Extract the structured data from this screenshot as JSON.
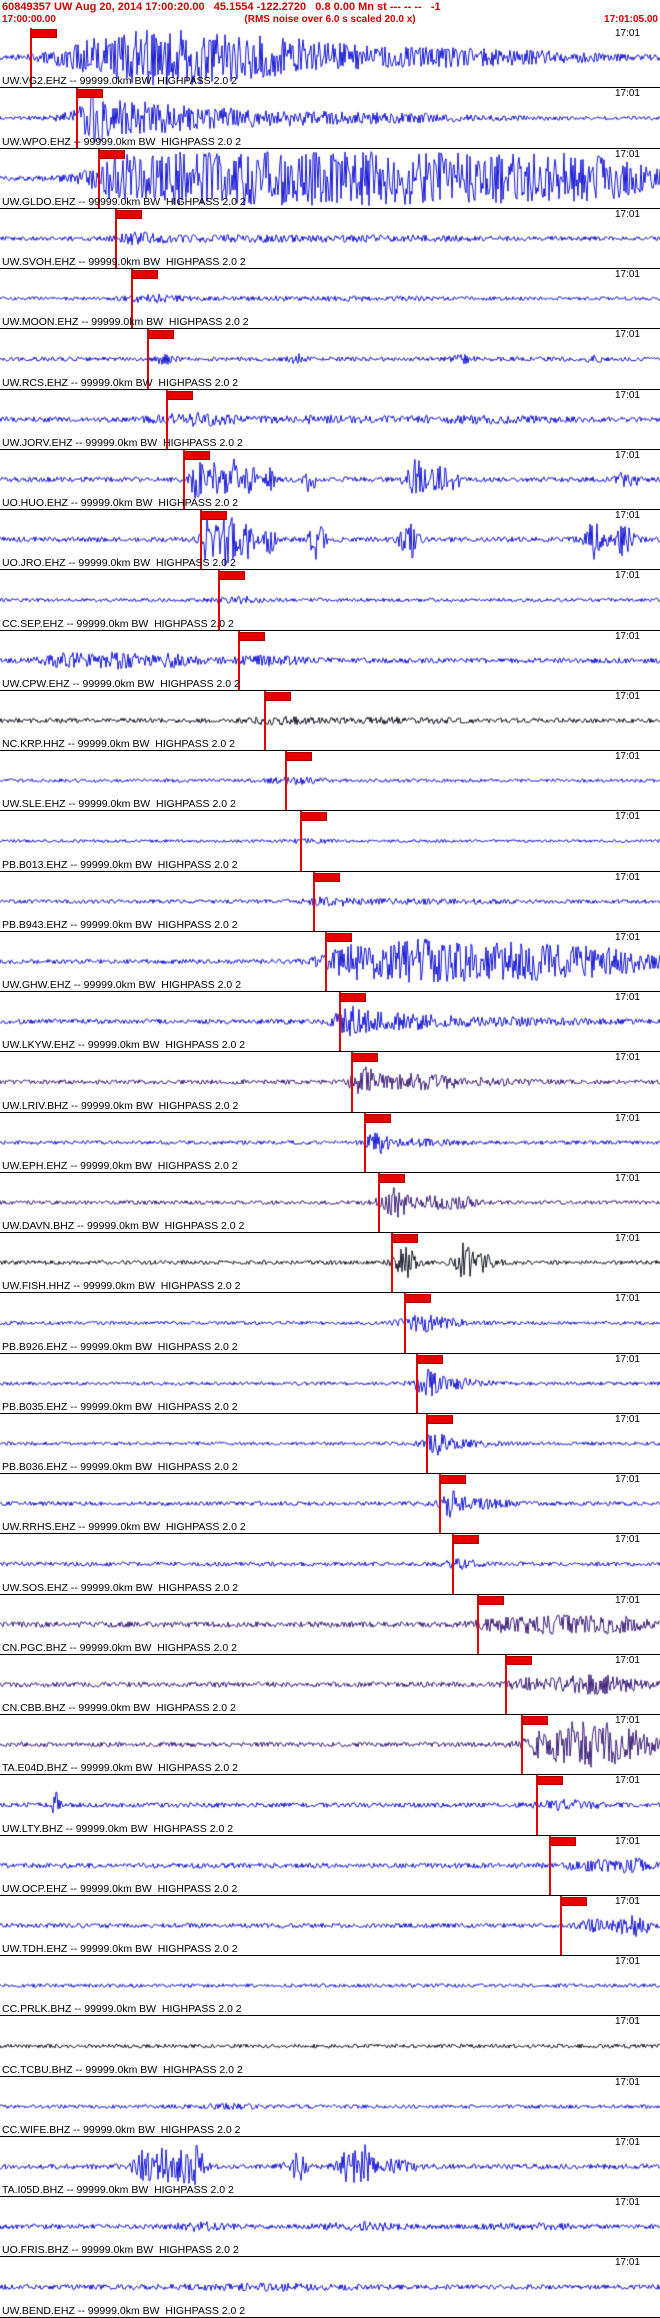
{
  "header": {
    "event_line": "60849357 UW Aug 20, 2014 17:00:20.00   45.1554 -122.2720   0.8 0.00 Mn st --- -- --   -1",
    "start_time": "17:00:00.00",
    "scale_note": "(RMS noise over 6.0 s scaled 20.0 x)",
    "end_time": "17:01:05.00"
  },
  "colors": {
    "header_red": "#cc0000",
    "pick_red": "#e60000",
    "blue": "#0000d2",
    "black": "#000014",
    "violet": "#2b0a6b"
  },
  "traces": [
    {
      "label": "UW.VG2.EHZ -- 99999.0km BW  HIGHPASS 2.0 2",
      "time_label": "17:01",
      "color": "blue",
      "pick": 0.045,
      "noise": 2.5,
      "bursts": [
        [
          0.18,
          0.06,
          18
        ],
        [
          0.3,
          0.08,
          22
        ],
        [
          0.45,
          0.07,
          12
        ],
        [
          0.62,
          0.1,
          7
        ],
        [
          0.8,
          0.1,
          4
        ]
      ]
    },
    {
      "label": "UW.WPO.EHZ -- 99999.0km BW  HIGHPASS 2.0 2",
      "time_label": "17:01",
      "color": "blue",
      "pick": 0.115,
      "noise": 2.0,
      "bursts": [
        [
          0.145,
          0.025,
          20
        ],
        [
          0.22,
          0.05,
          12
        ],
        [
          0.35,
          0.08,
          7
        ],
        [
          0.55,
          0.12,
          4
        ]
      ]
    },
    {
      "label": "UW.GLDO.EHZ -- 99999.0km BW  HIGHPASS 2.0 2",
      "time_label": "17:01",
      "color": "blue",
      "pick": 0.148,
      "noise": 2.5,
      "bursts": [
        [
          0.18,
          0.03,
          16
        ],
        [
          0.3,
          0.08,
          24
        ],
        [
          0.5,
          0.1,
          26
        ],
        [
          0.7,
          0.08,
          20
        ],
        [
          0.88,
          0.08,
          22
        ]
      ]
    },
    {
      "label": "UW.SVOH.EHZ -- 99999.0km BW  HIGHPASS 2.0 2",
      "time_label": "17:01",
      "color": "blue",
      "pick": 0.175,
      "noise": 2.2,
      "bursts": [
        [
          0.21,
          0.03,
          4
        ],
        [
          0.35,
          0.1,
          2
        ],
        [
          0.6,
          0.1,
          1.5
        ]
      ]
    },
    {
      "label": "UW.MOON.EHZ -- 99999.0km BW  HIGHPASS 2.0 2",
      "time_label": "17:01",
      "color": "blue",
      "pick": 0.198,
      "noise": 1.8,
      "bursts": [
        [
          0.23,
          0.03,
          3
        ],
        [
          0.5,
          0.15,
          1
        ]
      ]
    },
    {
      "label": "UW.RCS.EHZ -- 99999.0km BW  HIGHPASS 2.0 2",
      "time_label": "17:01",
      "color": "blue",
      "pick": 0.222,
      "noise": 2.2,
      "bursts": [
        [
          0.25,
          0.01,
          4
        ],
        [
          0.45,
          0.008,
          4
        ],
        [
          0.7,
          0.01,
          3
        ],
        [
          0.9,
          0.008,
          3
        ]
      ]
    },
    {
      "label": "UW.JORV.EHZ -- 99999.0km BW  HIGHPASS 2.0 2",
      "time_label": "17:01",
      "color": "blue",
      "pick": 0.252,
      "noise": 2.6,
      "bursts": [
        [
          0.29,
          0.04,
          5
        ],
        [
          0.5,
          0.1,
          2
        ],
        [
          0.75,
          0.08,
          2
        ]
      ]
    },
    {
      "label": "UO.HUO.EHZ -- 99999.0km BW  HIGHPASS 2.0 2",
      "time_label": "17:01",
      "color": "blue",
      "pick": 0.278,
      "noise": 2.6,
      "bursts": [
        [
          0.3,
          0.008,
          20
        ],
        [
          0.325,
          0.006,
          24
        ],
        [
          0.35,
          0.008,
          22
        ],
        [
          0.38,
          0.006,
          18
        ],
        [
          0.41,
          0.005,
          10
        ],
        [
          0.47,
          0.006,
          12
        ],
        [
          0.63,
          0.01,
          22
        ],
        [
          0.665,
          0.008,
          20
        ],
        [
          0.69,
          0.005,
          12
        ],
        [
          0.95,
          0.012,
          8
        ]
      ]
    },
    {
      "label": "UO.JRO.EHZ -- 99999.0km BW  HIGHPASS 2.0 2",
      "time_label": "17:01",
      "color": "blue",
      "pick": 0.303,
      "noise": 2.6,
      "bursts": [
        [
          0.315,
          0.008,
          22
        ],
        [
          0.345,
          0.01,
          26
        ],
        [
          0.375,
          0.008,
          22
        ],
        [
          0.41,
          0.006,
          16
        ],
        [
          0.48,
          0.008,
          18
        ],
        [
          0.62,
          0.01,
          20
        ],
        [
          0.9,
          0.012,
          18
        ],
        [
          0.945,
          0.01,
          16
        ]
      ]
    },
    {
      "label": "CC.SEP.EHZ -- 99999.0km BW  HIGHPASS 2.0 2",
      "time_label": "17:01",
      "color": "blue",
      "pick": 0.33,
      "noise": 1.8,
      "bursts": [
        [
          0.36,
          0.03,
          2.5
        ]
      ]
    },
    {
      "label": "UW.CPW.EHZ -- 99999.0km BW  HIGHPASS 2.0 2",
      "time_label": "17:01",
      "color": "blue",
      "pick": 0.36,
      "noise": 2.6,
      "bursts": [
        [
          0.1,
          0.025,
          6
        ],
        [
          0.18,
          0.03,
          7
        ],
        [
          0.26,
          0.025,
          5
        ],
        [
          0.4,
          0.05,
          3
        ]
      ]
    },
    {
      "label": "NC.KRP.HHZ -- 99999.0km BW  HIGHPASS 2.0 2",
      "time_label": "17:01",
      "color": "black",
      "pick": 0.4,
      "noise": 2.4,
      "bursts": [
        [
          0.42,
          0.03,
          3
        ],
        [
          0.6,
          0.08,
          1.5
        ]
      ]
    },
    {
      "label": "UW.SLE.EHZ -- 99999.0km BW  HIGHPASS 2.0 2",
      "time_label": "17:01",
      "color": "blue",
      "pick": 0.432,
      "noise": 1.8,
      "bursts": [
        [
          0.45,
          0.03,
          2.5
        ]
      ]
    },
    {
      "label": "PB.B013.EHZ -- 99999.0km BW  HIGHPASS 2.0 2",
      "time_label": "17:01",
      "color": "blue",
      "pick": 0.455,
      "noise": 1.5,
      "bursts": [
        [
          0.47,
          0.02,
          2
        ]
      ]
    },
    {
      "label": "PB.B943.EHZ -- 99999.0km BW  HIGHPASS 2.0 2",
      "time_label": "17:01",
      "color": "blue",
      "pick": 0.474,
      "noise": 2.0,
      "bursts": [
        [
          0.5,
          0.02,
          3
        ],
        [
          0.6,
          0.1,
          1.5
        ]
      ]
    },
    {
      "label": "UW.GHW.EHZ -- 99999.0km BW  HIGHPASS 2.0 2",
      "time_label": "17:01",
      "color": "blue",
      "pick": 0.493,
      "noise": 2.4,
      "bursts": [
        [
          0.53,
          0.03,
          10
        ],
        [
          0.62,
          0.06,
          16
        ],
        [
          0.75,
          0.08,
          14
        ],
        [
          0.9,
          0.08,
          12
        ]
      ]
    },
    {
      "label": "UW.LKYW.EHZ -- 99999.0km BW  HIGHPASS 2.0 2",
      "time_label": "17:01",
      "color": "blue",
      "pick": 0.513,
      "noise": 2.4,
      "bursts": [
        [
          0.535,
          0.02,
          12
        ],
        [
          0.6,
          0.05,
          6
        ],
        [
          0.75,
          0.1,
          3
        ]
      ]
    },
    {
      "label": "UW.LRIV.BHZ -- 99999.0km BW  HIGHPASS 2.0 2",
      "time_label": "17:01",
      "color": "violet",
      "pick": 0.532,
      "noise": 2.2,
      "bursts": [
        [
          0.555,
          0.015,
          14
        ],
        [
          0.62,
          0.04,
          6
        ],
        [
          0.72,
          0.06,
          3
        ]
      ]
    },
    {
      "label": "UW.EPH.EHZ -- 99999.0km BW  HIGHPASS 2.0 2",
      "time_label": "17:01",
      "color": "blue",
      "pick": 0.552,
      "noise": 2.0,
      "bursts": [
        [
          0.572,
          0.012,
          9
        ],
        [
          0.63,
          0.04,
          3
        ]
      ]
    },
    {
      "label": "UW.DAVN.BHZ -- 99999.0km BW  HIGHPASS 2.0 2",
      "time_label": "17:01",
      "color": "violet",
      "pick": 0.572,
      "noise": 2.0,
      "bursts": [
        [
          0.595,
          0.015,
          16
        ],
        [
          0.65,
          0.03,
          5
        ],
        [
          0.7,
          0.02,
          4
        ]
      ]
    },
    {
      "label": "UW.FISH.HHZ -- 99999.0km BW  HIGHPASS 2.0 2",
      "time_label": "17:01",
      "color": "black",
      "pick": 0.592,
      "noise": 2.2,
      "bursts": [
        [
          0.615,
          0.012,
          14
        ],
        [
          0.7,
          0.01,
          17
        ],
        [
          0.73,
          0.015,
          8
        ]
      ]
    },
    {
      "label": "PB.B926.EHZ -- 99999.0km BW  HIGHPASS 2.0 2",
      "time_label": "17:01",
      "color": "blue",
      "pick": 0.612,
      "noise": 1.8,
      "bursts": [
        [
          0.635,
          0.02,
          7
        ],
        [
          0.68,
          0.03,
          3
        ]
      ]
    },
    {
      "label": "PB.B035.EHZ -- 99999.0km BW  HIGHPASS 2.0 2",
      "time_label": "17:01",
      "color": "blue",
      "pick": 0.63,
      "noise": 1.8,
      "bursts": [
        [
          0.648,
          0.015,
          12
        ],
        [
          0.7,
          0.03,
          4
        ]
      ]
    },
    {
      "label": "PB.B036.EHZ -- 99999.0km BW  HIGHPASS 2.0 2",
      "time_label": "17:01",
      "color": "blue",
      "pick": 0.645,
      "noise": 1.8,
      "bursts": [
        [
          0.662,
          0.015,
          10
        ],
        [
          0.71,
          0.03,
          3
        ]
      ]
    },
    {
      "label": "UW.RRHS.EHZ -- 99999.0km BW  HIGHPASS 2.0 2",
      "time_label": "17:01",
      "color": "blue",
      "pick": 0.665,
      "noise": 2.2,
      "bursts": [
        [
          0.685,
          0.012,
          12
        ],
        [
          0.73,
          0.03,
          4
        ]
      ]
    },
    {
      "label": "UW.SOS.EHZ -- 99999.0km BW  HIGHPASS 2.0 2",
      "time_label": "17:01",
      "color": "blue",
      "pick": 0.685,
      "noise": 2.2,
      "bursts": [
        [
          0.7,
          0.02,
          4
        ]
      ]
    },
    {
      "label": "CN.PGC.BHZ -- 99999.0km BW  HIGHPASS 2.0 2",
      "time_label": "17:01",
      "color": "violet",
      "pick": 0.722,
      "noise": 2.8,
      "bursts": [
        [
          0.76,
          0.03,
          4
        ],
        [
          0.84,
          0.05,
          7
        ],
        [
          0.93,
          0.04,
          6
        ]
      ]
    },
    {
      "label": "CN.CBB.BHZ -- 99999.0km BW  HIGHPASS 2.0 2",
      "time_label": "17:01",
      "color": "violet",
      "pick": 0.765,
      "noise": 2.6,
      "bursts": [
        [
          0.8,
          0.02,
          4
        ],
        [
          0.9,
          0.05,
          8
        ]
      ]
    },
    {
      "label": "TA.E04D.BHZ -- 99999.0km BW  HIGHPASS 2.0 2",
      "time_label": "17:01",
      "color": "violet",
      "pick": 0.79,
      "noise": 2.4,
      "bursts": [
        [
          0.82,
          0.02,
          8
        ],
        [
          0.88,
          0.035,
          22
        ],
        [
          0.95,
          0.03,
          16
        ]
      ]
    },
    {
      "label": "UW.LTY.BHZ -- 99999.0km BW  HIGHPASS 2.0 2",
      "time_label": "17:01",
      "color": "blue",
      "pick": 0.812,
      "noise": 2.4,
      "bursts": [
        [
          0.085,
          0.004,
          12
        ],
        [
          0.86,
          0.03,
          4
        ]
      ]
    },
    {
      "label": "UW.OCP.EHZ -- 99999.0km BW  HIGHPASS 2.0 2",
      "time_label": "17:01",
      "color": "blue",
      "pick": 0.832,
      "noise": 2.6,
      "bursts": [
        [
          0.9,
          0.03,
          4
        ],
        [
          0.96,
          0.02,
          5
        ]
      ]
    },
    {
      "label": "UW.TDH.EHZ -- 99999.0km BW  HIGHPASS 2.0 2",
      "time_label": "17:01",
      "color": "blue",
      "pick": 0.848,
      "noise": 2.4,
      "bursts": [
        [
          0.9,
          0.015,
          5
        ],
        [
          0.96,
          0.02,
          10
        ]
      ]
    },
    {
      "label": "CC.PRLK.BHZ -- 99999.0km BW  HIGHPASS 2.0 2",
      "time_label": "17:01",
      "color": "blue",
      "pick": null,
      "noise": 1.9,
      "bursts": []
    },
    {
      "label": "CC.TCBU.BHZ -- 99999.0km BW  HIGHPASS 2.0 2",
      "time_label": "17:01",
      "color": "black",
      "pick": null,
      "noise": 2.0,
      "bursts": []
    },
    {
      "label": "CC.WIFE.BHZ -- 99999.0km BW  HIGHPASS 2.0 2",
      "time_label": "17:01",
      "color": "blue",
      "pick": null,
      "noise": 1.9,
      "bursts": [
        [
          0.35,
          0.05,
          1.5
        ]
      ]
    },
    {
      "label": "TA.I05D.BHZ -- 99999.0km BW  HIGHPASS 2.0 2",
      "time_label": "17:01",
      "color": "blue",
      "pick": null,
      "noise": 2.6,
      "bursts": [
        [
          0.215,
          0.01,
          14
        ],
        [
          0.245,
          0.012,
          18
        ],
        [
          0.28,
          0.01,
          20
        ],
        [
          0.3,
          0.008,
          16
        ],
        [
          0.45,
          0.01,
          14
        ],
        [
          0.53,
          0.012,
          16
        ],
        [
          0.555,
          0.008,
          18
        ],
        [
          0.6,
          0.02,
          6
        ]
      ]
    },
    {
      "label": "UO.FRIS.BHZ -- 99999.0km BW  HIGHPASS 2.0 2",
      "time_label": "17:01",
      "color": "blue",
      "pick": null,
      "noise": 2.4,
      "bursts": [
        [
          0.3,
          0.03,
          3
        ],
        [
          0.55,
          0.04,
          3
        ],
        [
          0.8,
          0.05,
          2
        ]
      ]
    },
    {
      "label": "UW.BEND.EHZ -- 99999.0km BW  HIGHPASS 2.0 2",
      "time_label": "17:01",
      "color": "blue",
      "pick": null,
      "noise": 2.4,
      "bursts": [
        [
          0.4,
          0.1,
          2
        ]
      ]
    }
  ]
}
